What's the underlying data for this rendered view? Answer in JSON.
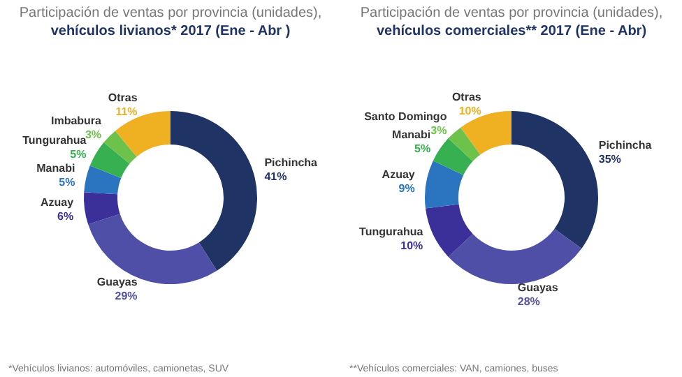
{
  "chart_data": [
    {
      "type": "donut",
      "title": "Participación de ventas por provincia (unidades),",
      "subtitle": "vehículos livianos* 2017 (Ene - Abr )",
      "categories": [
        "Pichincha",
        "Guayas",
        "Azuay",
        "Manabi",
        "Tungurahua",
        "Imbabura",
        "Otras"
      ],
      "values": [
        41,
        29,
        6,
        5,
        5,
        3,
        11
      ],
      "value_labels": [
        "41%",
        "29%",
        "6%",
        "5%",
        "5%",
        "3%",
        "11%"
      ],
      "colors": [
        "#1f3464",
        "#4f4fa8",
        "#3b2f9a",
        "#2a74c0",
        "#36b050",
        "#6cc24a",
        "#efb021"
      ],
      "annotations": [
        "*Vehículos livianos: automóviles, camionetas, SUV"
      ]
    },
    {
      "type": "donut",
      "title": "Participación de ventas por provincia (unidades),",
      "subtitle": "vehículos comerciales** 2017 (Ene - Abr)",
      "categories": [
        "Pichincha",
        "Guayas",
        "Tungurahua",
        "Azuay",
        "Manabi",
        "Santo Domingo",
        "Otras"
      ],
      "values": [
        35,
        28,
        10,
        9,
        5,
        3,
        10
      ],
      "value_labels": [
        "35%",
        "28%",
        "10%",
        "9%",
        "5%",
        "3%",
        "10%"
      ],
      "colors": [
        "#1f3464",
        "#4f4fa8",
        "#3b2f9a",
        "#2a74c0",
        "#36b050",
        "#6cc24a",
        "#efb021"
      ],
      "annotations": [
        "**Vehículos comerciales: VAN, camiones, buses"
      ]
    }
  ]
}
